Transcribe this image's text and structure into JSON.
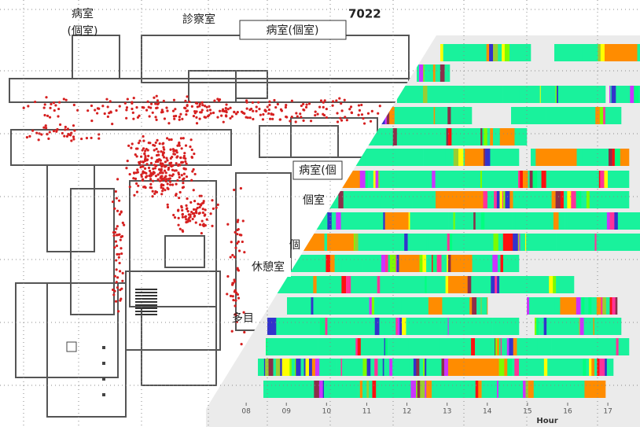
{
  "floor_plan": {
    "figure_id": "7022",
    "labels": [
      "病室",
      "(個室)",
      "診察室",
      "病室(個室)",
      "病室(個",
      "個室",
      "個",
      "休憩室",
      "多目"
    ]
  },
  "chart_data": {
    "type": "timeline",
    "xlabel": "Hour",
    "xlim": [
      7,
      17.8
    ],
    "xticks": [
      {
        "value": 8,
        "label": "08"
      },
      {
        "value": 9,
        "label": "09"
      },
      10,
      11,
      12,
      13,
      14,
      15,
      16,
      17
    ]
  }
}
